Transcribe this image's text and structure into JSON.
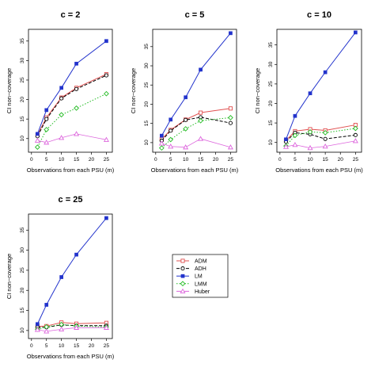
{
  "colors": {
    "ADM": "#e05050",
    "ADH": "#000000",
    "LM": "#2233cc",
    "LMM": "#22bb22",
    "Huber": "#dd66dd"
  },
  "legend": {
    "placement": "bottom-center",
    "entries": [
      "ADM",
      "ADH",
      "LM",
      "LMM",
      "Huber"
    ]
  },
  "chart_data": [
    {
      "type": "line",
      "title": "c =  2",
      "xlabel": "Observations from each PSU (m)",
      "ylabel": "CI non−coverage",
      "x": [
        2,
        5,
        10,
        15,
        25
      ],
      "xticks": [
        0,
        5,
        10,
        15,
        20,
        25
      ],
      "yticks": [
        10,
        15,
        20,
        25,
        30,
        35
      ],
      "xlim": [
        -1,
        27
      ],
      "ylim": [
        6.5,
        38
      ],
      "series": [
        {
          "name": "ADM",
          "values": [
            10.9,
            15.4,
            20.5,
            23.0,
            26.5
          ]
        },
        {
          "name": "ADH",
          "values": [
            10.6,
            15.0,
            20.3,
            22.7,
            26.2
          ]
        },
        {
          "name": "LM",
          "values": [
            11.2,
            17.3,
            23.0,
            29.2,
            35.0
          ]
        },
        {
          "name": "LMM",
          "values": [
            7.8,
            12.3,
            16.1,
            17.8,
            21.5
          ]
        },
        {
          "name": "Huber",
          "values": [
            9.5,
            9.0,
            10.2,
            11.2,
            9.7
          ]
        }
      ]
    },
    {
      "type": "line",
      "title": "c =  5",
      "xlabel": "Observations from each PSU (m)",
      "ylabel": "CI non−coverage",
      "x": [
        2,
        5,
        10,
        15,
        25
      ],
      "xticks": [
        0,
        5,
        10,
        15,
        20,
        25
      ],
      "yticks": [
        10,
        15,
        20,
        25,
        30,
        35
      ],
      "xlim": [
        -1,
        27
      ],
      "ylim": [
        7.5,
        39.5
      ],
      "series": [
        {
          "name": "ADM",
          "values": [
            10.9,
            13.3,
            16.0,
            17.8,
            18.9
          ]
        },
        {
          "name": "ADH",
          "values": [
            10.5,
            13.1,
            15.9,
            16.6,
            15.1
          ]
        },
        {
          "name": "LM",
          "values": [
            11.8,
            16.0,
            21.8,
            29.0,
            38.5
          ]
        },
        {
          "name": "LMM",
          "values": [
            8.6,
            10.8,
            13.6,
            15.7,
            16.5
          ]
        },
        {
          "name": "Huber",
          "values": [
            9.8,
            9.0,
            8.8,
            11.0,
            8.8
          ]
        }
      ]
    },
    {
      "type": "line",
      "title": "c =  10",
      "xlabel": "Observations from each PSU (m)",
      "ylabel": "CI non−coverage",
      "x": [
        2,
        5,
        10,
        15,
        25
      ],
      "xticks": [
        0,
        5,
        10,
        15,
        20,
        25
      ],
      "yticks": [
        10,
        15,
        20,
        25,
        30,
        35
      ],
      "xlim": [
        -1,
        27
      ],
      "ylim": [
        7.5,
        39
      ],
      "series": [
        {
          "name": "ADM",
          "values": [
            10.5,
            12.9,
            13.4,
            13.1,
            14.5
          ]
        },
        {
          "name": "ADH",
          "values": [
            10.2,
            12.5,
            12.1,
            10.9,
            11.9
          ]
        },
        {
          "name": "LM",
          "values": [
            10.8,
            16.8,
            22.6,
            28.0,
            38.2
          ]
        },
        {
          "name": "LMM",
          "values": [
            9.1,
            11.8,
            12.7,
            12.5,
            13.6
          ]
        },
        {
          "name": "Huber",
          "values": [
            8.9,
            9.4,
            8.6,
            9.0,
            10.4
          ]
        }
      ]
    },
    {
      "type": "line",
      "title": "c =  25",
      "xlabel": "Observations from each PSU (m)",
      "ylabel": "CI non−coverage",
      "x": [
        2,
        5,
        10,
        15,
        25
      ],
      "xticks": [
        0,
        5,
        10,
        15,
        20,
        25
      ],
      "yticks": [
        10,
        15,
        20,
        25,
        30,
        35
      ],
      "xlim": [
        -1,
        27
      ],
      "ylim": [
        8,
        39
      ],
      "series": [
        {
          "name": "ADM",
          "values": [
            11.0,
            11.1,
            12.0,
            11.7,
            11.9
          ]
        },
        {
          "name": "ADH",
          "values": [
            10.8,
            10.8,
            11.4,
            11.2,
            11.2
          ]
        },
        {
          "name": "LM",
          "values": [
            11.6,
            16.4,
            23.3,
            28.9,
            38.0
          ]
        },
        {
          "name": "LMM",
          "values": [
            10.3,
            10.9,
            11.5,
            11.1,
            10.9
          ]
        },
        {
          "name": "Huber",
          "values": [
            10.2,
            9.8,
            10.3,
            10.7,
            10.7
          ]
        }
      ]
    }
  ]
}
